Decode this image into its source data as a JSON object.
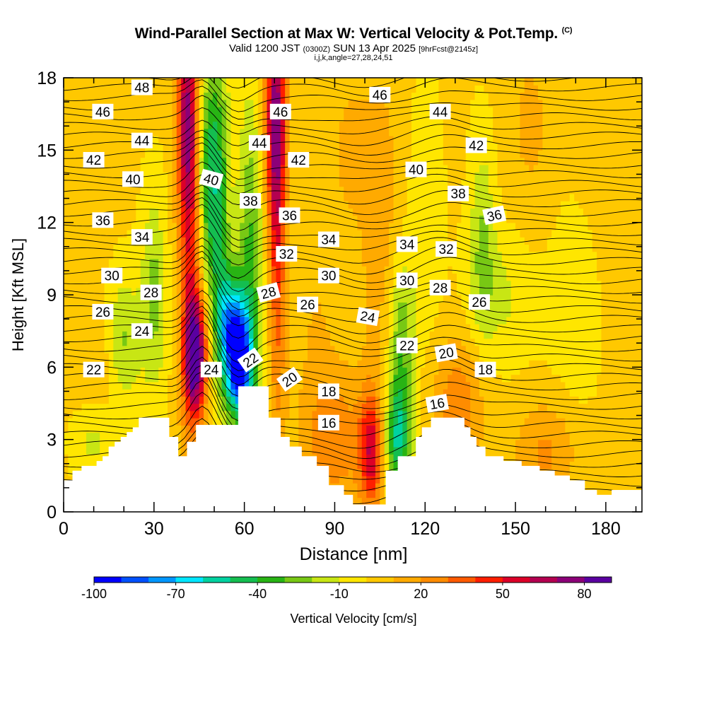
{
  "chart_data": {
    "type": "heatmap",
    "title": "Wind-Parallel Section at Max W: Vertical Velocity & Pot.Temp.",
    "title_mark": "(C)",
    "subtitle_main": "Valid 1200 JST",
    "subtitle_utc": "(0300Z)",
    "subtitle_date": "SUN 13 Apr 2025",
    "subtitle_fcst": "[9hrFcst@2145z]",
    "indices": "i,j,k,angle=27,28,24,51",
    "xlabel": "Distance [nm]",
    "ylabel": "Height [Kft MSL]",
    "xlim": [
      0,
      192
    ],
    "ylim": [
      0,
      18
    ],
    "x_ticks": [
      "0",
      "30",
      "60",
      "90",
      "120",
      "150",
      "180"
    ],
    "y_ticks": [
      "0",
      "3",
      "6",
      "9",
      "12",
      "15",
      "18"
    ],
    "colorbar": {
      "label": "Vertical Velocity [cm/s]",
      "levels": [
        -100,
        -90,
        -80,
        -70,
        -60,
        -50,
        -40,
        -30,
        -20,
        -10,
        0,
        10,
        20,
        30,
        40,
        50,
        60,
        70,
        80
      ],
      "tick_labels": [
        "-100",
        "-70",
        "-40",
        "-10",
        "20",
        "50",
        "80"
      ],
      "colors": [
        "#0000ff",
        "#0050ff",
        "#0096ff",
        "#00e6ff",
        "#00d2a0",
        "#14be50",
        "#28b414",
        "#78c814",
        "#c8e614",
        "#ffe600",
        "#ffc800",
        "#ffaa00",
        "#ff8c00",
        "#ff5a00",
        "#ff1e00",
        "#dc0028",
        "#b40050",
        "#8c0078",
        "#5a00a0"
      ]
    },
    "updraft_cores_cm_s": [
      {
        "x": 44,
        "height": 6.5,
        "w": 80
      },
      {
        "x": 41,
        "height": 16.5,
        "w": 50
      },
      {
        "x": 70,
        "height": 16.5,
        "w": 50
      },
      {
        "x": 102,
        "height": 2.5,
        "w": 50
      }
    ],
    "downdraft_cores_cm_s": [
      {
        "x": 58,
        "height": 6.2,
        "w": -100
      },
      {
        "x": 111,
        "height": 3.0,
        "w": -50
      },
      {
        "x": 48,
        "height": 14.0,
        "w": -40
      }
    ],
    "theta_contour_labels": [
      {
        "x": 26,
        "height": 17.6,
        "text": "48"
      },
      {
        "x": 13,
        "height": 16.6,
        "text": "46"
      },
      {
        "x": 72,
        "height": 16.6,
        "text": "46"
      },
      {
        "x": 105,
        "height": 17.3,
        "text": "46"
      },
      {
        "x": 125,
        "height": 16.6,
        "text": "44"
      },
      {
        "x": 26,
        "height": 15.4,
        "text": "44"
      },
      {
        "x": 65,
        "height": 15.3,
        "text": "44"
      },
      {
        "x": 10,
        "height": 14.6,
        "text": "42"
      },
      {
        "x": 78,
        "height": 14.6,
        "text": "42"
      },
      {
        "x": 137,
        "height": 15.2,
        "text": "42"
      },
      {
        "x": 23,
        "height": 13.8,
        "text": "40"
      },
      {
        "x": 49,
        "height": 13.8,
        "text": "40",
        "rotate": 15
      },
      {
        "x": 117,
        "height": 14.2,
        "text": "40"
      },
      {
        "x": 62,
        "height": 12.9,
        "text": "38"
      },
      {
        "x": 131,
        "height": 13.2,
        "text": "38"
      },
      {
        "x": 13,
        "height": 12.1,
        "text": "36"
      },
      {
        "x": 75,
        "height": 12.3,
        "text": "36"
      },
      {
        "x": 143,
        "height": 12.3,
        "text": "36",
        "rotate": -12
      },
      {
        "x": 26,
        "height": 11.4,
        "text": "34"
      },
      {
        "x": 88,
        "height": 11.3,
        "text": "34"
      },
      {
        "x": 114,
        "height": 11.1,
        "text": "34"
      },
      {
        "x": 74,
        "height": 10.7,
        "text": "32"
      },
      {
        "x": 127,
        "height": 10.9,
        "text": "32"
      },
      {
        "x": 16,
        "height": 9.8,
        "text": "30"
      },
      {
        "x": 88,
        "height": 9.8,
        "text": "30"
      },
      {
        "x": 114,
        "height": 9.6,
        "text": "30"
      },
      {
        "x": 29,
        "height": 9.1,
        "text": "28"
      },
      {
        "x": 68,
        "height": 9.1,
        "text": "28",
        "rotate": -15
      },
      {
        "x": 125,
        "height": 9.3,
        "text": "28"
      },
      {
        "x": 13,
        "height": 8.3,
        "text": "26"
      },
      {
        "x": 81,
        "height": 8.6,
        "text": "26"
      },
      {
        "x": 138,
        "height": 8.7,
        "text": "26"
      },
      {
        "x": 26,
        "height": 7.5,
        "text": "24"
      },
      {
        "x": 101,
        "height": 8.1,
        "text": "24",
        "rotate": 10
      },
      {
        "x": 49,
        "height": 5.9,
        "text": "24"
      },
      {
        "x": 10,
        "height": 5.9,
        "text": "22"
      },
      {
        "x": 62,
        "height": 6.3,
        "text": "22",
        "rotate": -35
      },
      {
        "x": 114,
        "height": 6.9,
        "text": "22"
      },
      {
        "x": 75,
        "height": 5.5,
        "text": "20",
        "rotate": -35
      },
      {
        "x": 127,
        "height": 6.6,
        "text": "20",
        "rotate": -10
      },
      {
        "x": 88,
        "height": 5.0,
        "text": "18"
      },
      {
        "x": 140,
        "height": 5.9,
        "text": "18"
      },
      {
        "x": 88,
        "height": 3.7,
        "text": "16"
      },
      {
        "x": 124,
        "height": 4.5,
        "text": "16",
        "rotate": -10
      }
    ],
    "terrain_kft": [
      [
        0,
        1.3
      ],
      [
        3,
        1.3
      ],
      [
        3,
        1.7
      ],
      [
        6,
        1.7
      ],
      [
        6,
        1.9
      ],
      [
        11,
        1.9
      ],
      [
        11,
        2.1
      ],
      [
        13,
        2.1
      ],
      [
        13,
        2.3
      ],
      [
        15,
        2.3
      ],
      [
        15,
        2.7
      ],
      [
        17,
        2.7
      ],
      [
        17,
        2.9
      ],
      [
        19,
        2.9
      ],
      [
        19,
        3.1
      ],
      [
        21,
        3.1
      ],
      [
        21,
        3.3
      ],
      [
        23,
        3.3
      ],
      [
        23,
        3.5
      ],
      [
        25,
        3.5
      ],
      [
        25,
        3.9
      ],
      [
        35,
        3.9
      ],
      [
        35,
        3.1
      ],
      [
        38,
        3.1
      ],
      [
        38,
        2.3
      ],
      [
        41,
        2.3
      ],
      [
        41,
        2.9
      ],
      [
        44,
        2.9
      ],
      [
        44,
        3.6
      ],
      [
        58,
        3.6
      ],
      [
        58,
        5.2
      ],
      [
        68,
        5.2
      ],
      [
        68,
        3.9
      ],
      [
        72,
        3.9
      ],
      [
        72,
        3.1
      ],
      [
        75,
        3.1
      ],
      [
        75,
        2.7
      ],
      [
        79,
        2.7
      ],
      [
        79,
        2.3
      ],
      [
        84,
        2.3
      ],
      [
        84,
        1.9
      ],
      [
        88,
        1.9
      ],
      [
        88,
        1.1
      ],
      [
        93,
        1.1
      ],
      [
        93,
        0.7
      ],
      [
        96,
        0.7
      ],
      [
        96,
        0.3
      ],
      [
        107,
        0.3
      ],
      [
        107,
        1.7
      ],
      [
        111,
        1.7
      ],
      [
        111,
        2.3
      ],
      [
        117,
        2.3
      ],
      [
        117,
        3.1
      ],
      [
        119,
        3.1
      ],
      [
        119,
        3.5
      ],
      [
        122,
        3.5
      ],
      [
        122,
        3.9
      ],
      [
        133,
        3.9
      ],
      [
        133,
        3.5
      ],
      [
        135,
        3.5
      ],
      [
        135,
        3.1
      ],
      [
        137,
        3.1
      ],
      [
        137,
        2.7
      ],
      [
        140,
        2.7
      ],
      [
        140,
        2.3
      ],
      [
        146,
        2.3
      ],
      [
        146,
        2.1
      ],
      [
        152,
        2.1
      ],
      [
        152,
        1.9
      ],
      [
        158,
        1.9
      ],
      [
        158,
        1.7
      ],
      [
        163,
        1.7
      ],
      [
        163,
        1.5
      ],
      [
        168,
        1.5
      ],
      [
        168,
        1.3
      ],
      [
        173,
        1.3
      ],
      [
        173,
        0.9
      ],
      [
        177,
        0.9
      ],
      [
        177,
        0.7
      ],
      [
        182,
        0.7
      ],
      [
        182,
        0.9
      ],
      [
        192,
        0.9
      ]
    ]
  }
}
